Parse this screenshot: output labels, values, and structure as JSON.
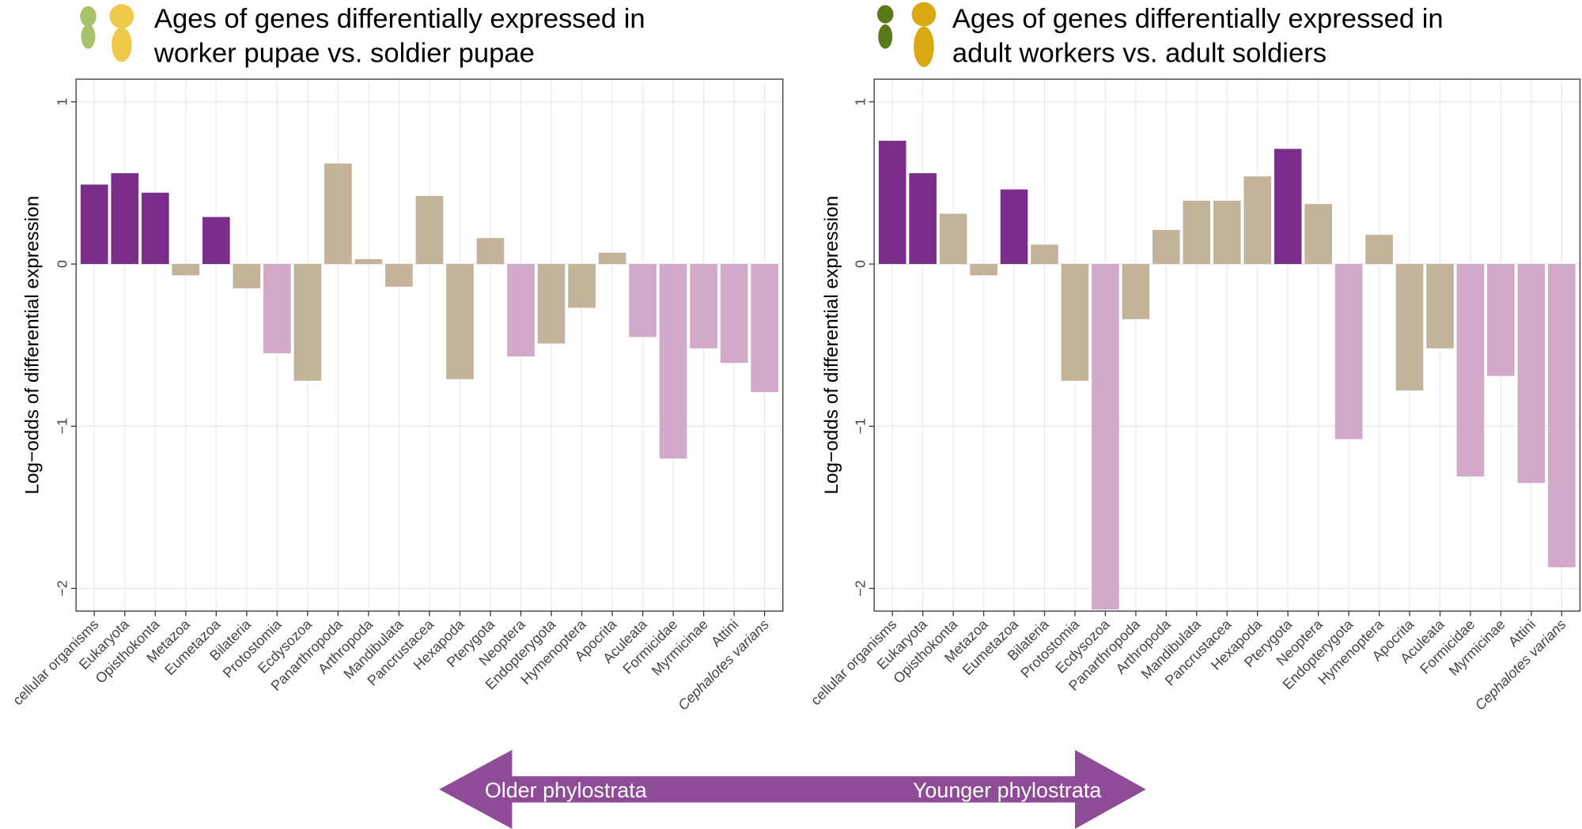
{
  "chart_data": [
    {
      "type": "bar",
      "title": [
        "Ages of genes differentially expressed in",
        "worker pupae vs. soldier pupae"
      ],
      "y_label": "Log−odds of differential expression",
      "categories": [
        "cellular organisms",
        "Eukaryota",
        "Opisthokonta",
        "Metazoa",
        "Eumetazoa",
        "Bilateria",
        "Protostomia",
        "Ecdysozoa",
        "Panarthropoda",
        "Arthropoda",
        "Mandibulata",
        "Pancrustacea",
        "Hexapoda",
        "Pterygota",
        "Neoptera",
        "Endopterygota",
        "Hymenoptera",
        "Apocrita",
        "Aculeata",
        "Formicidae",
        "Myrmicinae",
        "Attini",
        "Cephalotes varians"
      ],
      "values": [
        0.49,
        0.56,
        0.44,
        -0.07,
        0.29,
        -0.15,
        -0.55,
        -0.72,
        0.62,
        0.03,
        -0.14,
        0.42,
        -0.71,
        0.16,
        -0.57,
        -0.49,
        -0.27,
        0.07,
        -0.45,
        -1.2,
        -0.52,
        -0.61,
        -0.79
      ],
      "colors": [
        "#7b2d8b",
        "#7b2d8b",
        "#7b2d8b",
        "#c2b39a",
        "#7b2d8b",
        "#c2b39a",
        "#d3a9c9",
        "#c2b39a",
        "#c2b39a",
        "#c2b39a",
        "#c2b39a",
        "#c2b39a",
        "#c2b39a",
        "#c2b39a",
        "#d3a9c9",
        "#c2b39a",
        "#c2b39a",
        "#c2b39a",
        "#d3a9c9",
        "#d3a9c9",
        "#d3a9c9",
        "#d3a9c9",
        "#d3a9c9"
      ],
      "ylim": [
        -2.14,
        1.14
      ],
      "yticks": [
        {
          "value": -2,
          "label": "−2"
        },
        {
          "value": -1,
          "label": "−1"
        },
        0,
        1
      ],
      "grid": true
    },
    {
      "type": "bar",
      "title": [
        "Ages of genes differentially expressed in",
        "adult workers vs. adult soldiers"
      ],
      "y_label": "Log−odds of differential expression",
      "categories": [
        "cellular organisms",
        "Eukaryota",
        "Opisthokonta",
        "Metazoa",
        "Eumetazoa",
        "Bilateria",
        "Protostomia",
        "Ecdysozoa",
        "Panarthropoda",
        "Arthropoda",
        "Mandibulata",
        "Pancrustacea",
        "Hexapoda",
        "Pterygota",
        "Neoptera",
        "Endopterygota",
        "Hymenoptera",
        "Apocrita",
        "Aculeata",
        "Formicidae",
        "Myrmicinae",
        "Attini",
        "Cephalotes varians"
      ],
      "values": [
        0.76,
        0.56,
        0.31,
        -0.07,
        0.46,
        0.12,
        -0.72,
        -2.13,
        -0.34,
        0.21,
        0.39,
        0.39,
        0.54,
        0.71,
        0.37,
        -1.08,
        0.18,
        -0.78,
        -0.52,
        -1.31,
        -0.69,
        -1.35,
        -1.87
      ],
      "colors": [
        "#7b2d8b",
        "#7b2d8b",
        "#c2b39a",
        "#c2b39a",
        "#7b2d8b",
        "#c2b39a",
        "#c2b39a",
        "#d3a9c9",
        "#c2b39a",
        "#c2b39a",
        "#c2b39a",
        "#c2b39a",
        "#c2b39a",
        "#7b2d8b",
        "#c2b39a",
        "#d3a9c9",
        "#c2b39a",
        "#c2b39a",
        "#c2b39a",
        "#d3a9c9",
        "#d3a9c9",
        "#d3a9c9",
        "#d3a9c9"
      ],
      "ylim": [
        -2.14,
        1.14
      ],
      "yticks": [
        {
          "value": -2,
          "label": "−2"
        },
        {
          "value": -1,
          "label": "−1"
        },
        0,
        1
      ],
      "grid": true
    }
  ],
  "arrow": {
    "left": "Older phylostrata",
    "right": "Younger phylostrata"
  }
}
